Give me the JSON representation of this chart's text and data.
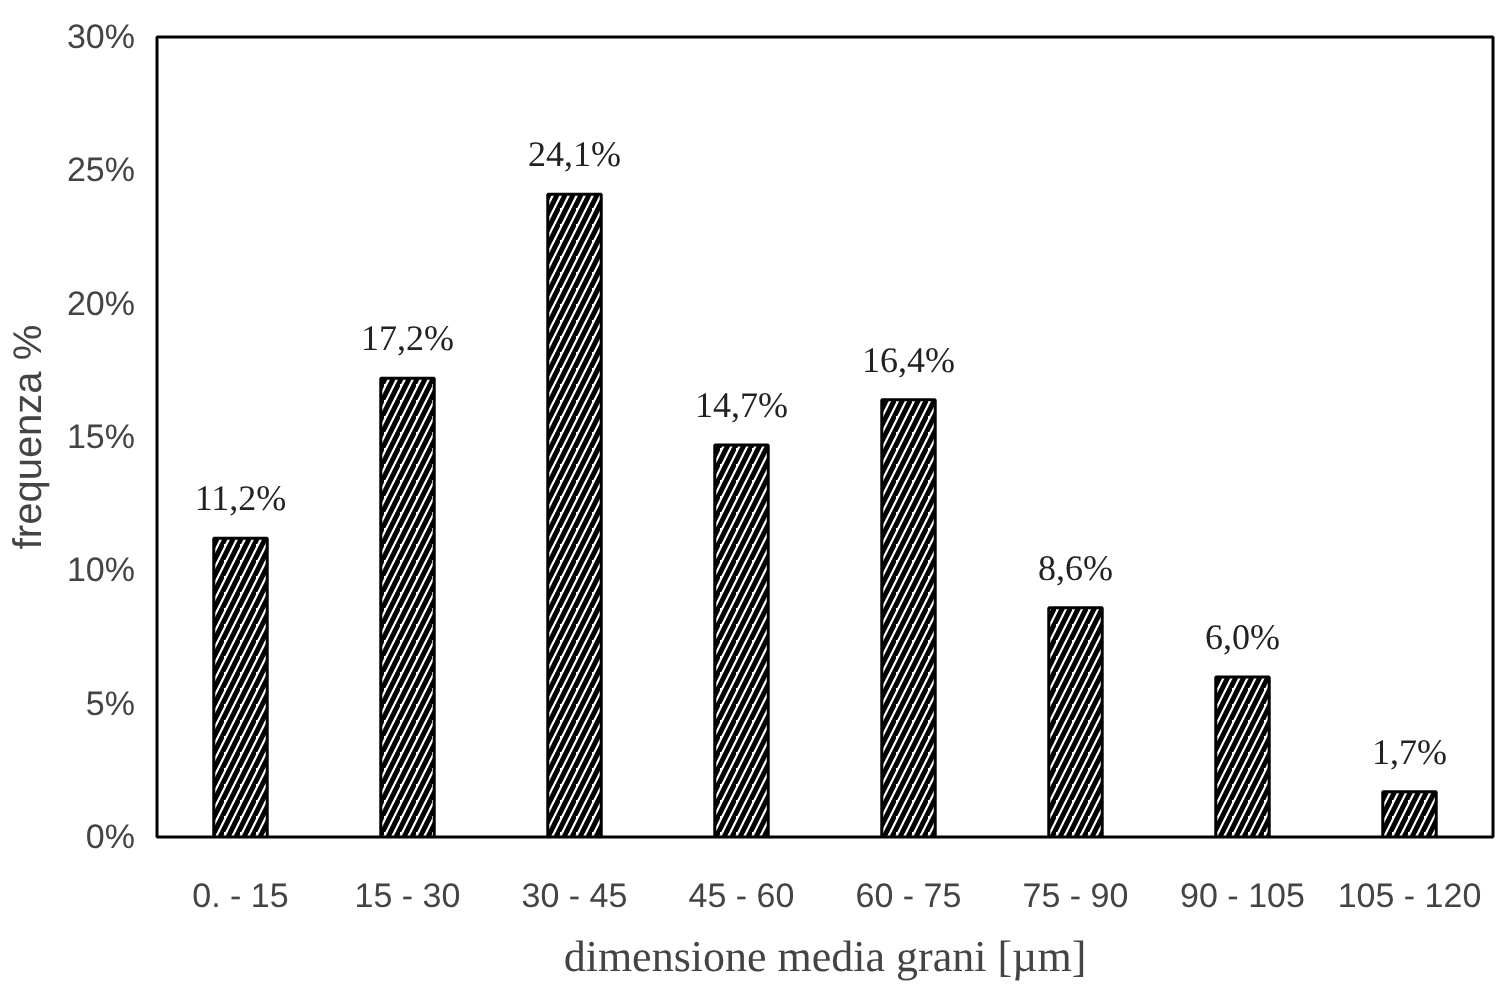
{
  "chart_data": {
    "type": "bar",
    "xlabel": "dimensione media grani [µm]",
    "ylabel": "frequenza %",
    "categories": [
      "0. - 15",
      "15 - 30",
      "30 - 45",
      "45 - 60",
      "60 - 75",
      "75 - 90",
      "90 - 105",
      "105 - 120"
    ],
    "values": [
      11.2,
      17.2,
      24.1,
      14.7,
      16.4,
      8.6,
      6.0,
      1.7
    ],
    "value_labels": [
      "11,2%",
      "17,2%",
      "24,1%",
      "14,7%",
      "16,4%",
      "8,6%",
      "6,0%",
      "1,7%"
    ],
    "color": "#000000",
    "ylim": [
      0,
      30
    ],
    "yticks": [
      {
        "value": 0,
        "label": "0%"
      },
      {
        "value": 5,
        "label": "5%"
      },
      {
        "value": 10,
        "label": "10%"
      },
      {
        "value": 15,
        "label": "15%"
      },
      {
        "value": 20,
        "label": "20%"
      },
      {
        "value": 25,
        "label": "25%"
      },
      {
        "value": 30,
        "label": "30%"
      }
    ],
    "grid": false
  }
}
